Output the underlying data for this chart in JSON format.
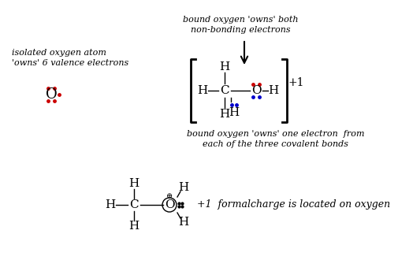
{
  "bg_color": "#ffffff",
  "text_color": "#000000",
  "red_color": "#cc0000",
  "blue_color": "#0000cc",
  "font_italic": "italic",
  "font_family": "serif",
  "annotation1_line1": "bound oxygen 'owns' both",
  "annotation1_line2": "non-bonding electrons",
  "annotation2_line1": "bound oxygen 'owns' one electron  from",
  "annotation2_line2": "each of the three covalent bonds",
  "annotation3": "isolated oxygen atom",
  "annotation3b": "'owns' 6 valence electrons",
  "annotation4": "+1  formalcharge is located on oxygen"
}
